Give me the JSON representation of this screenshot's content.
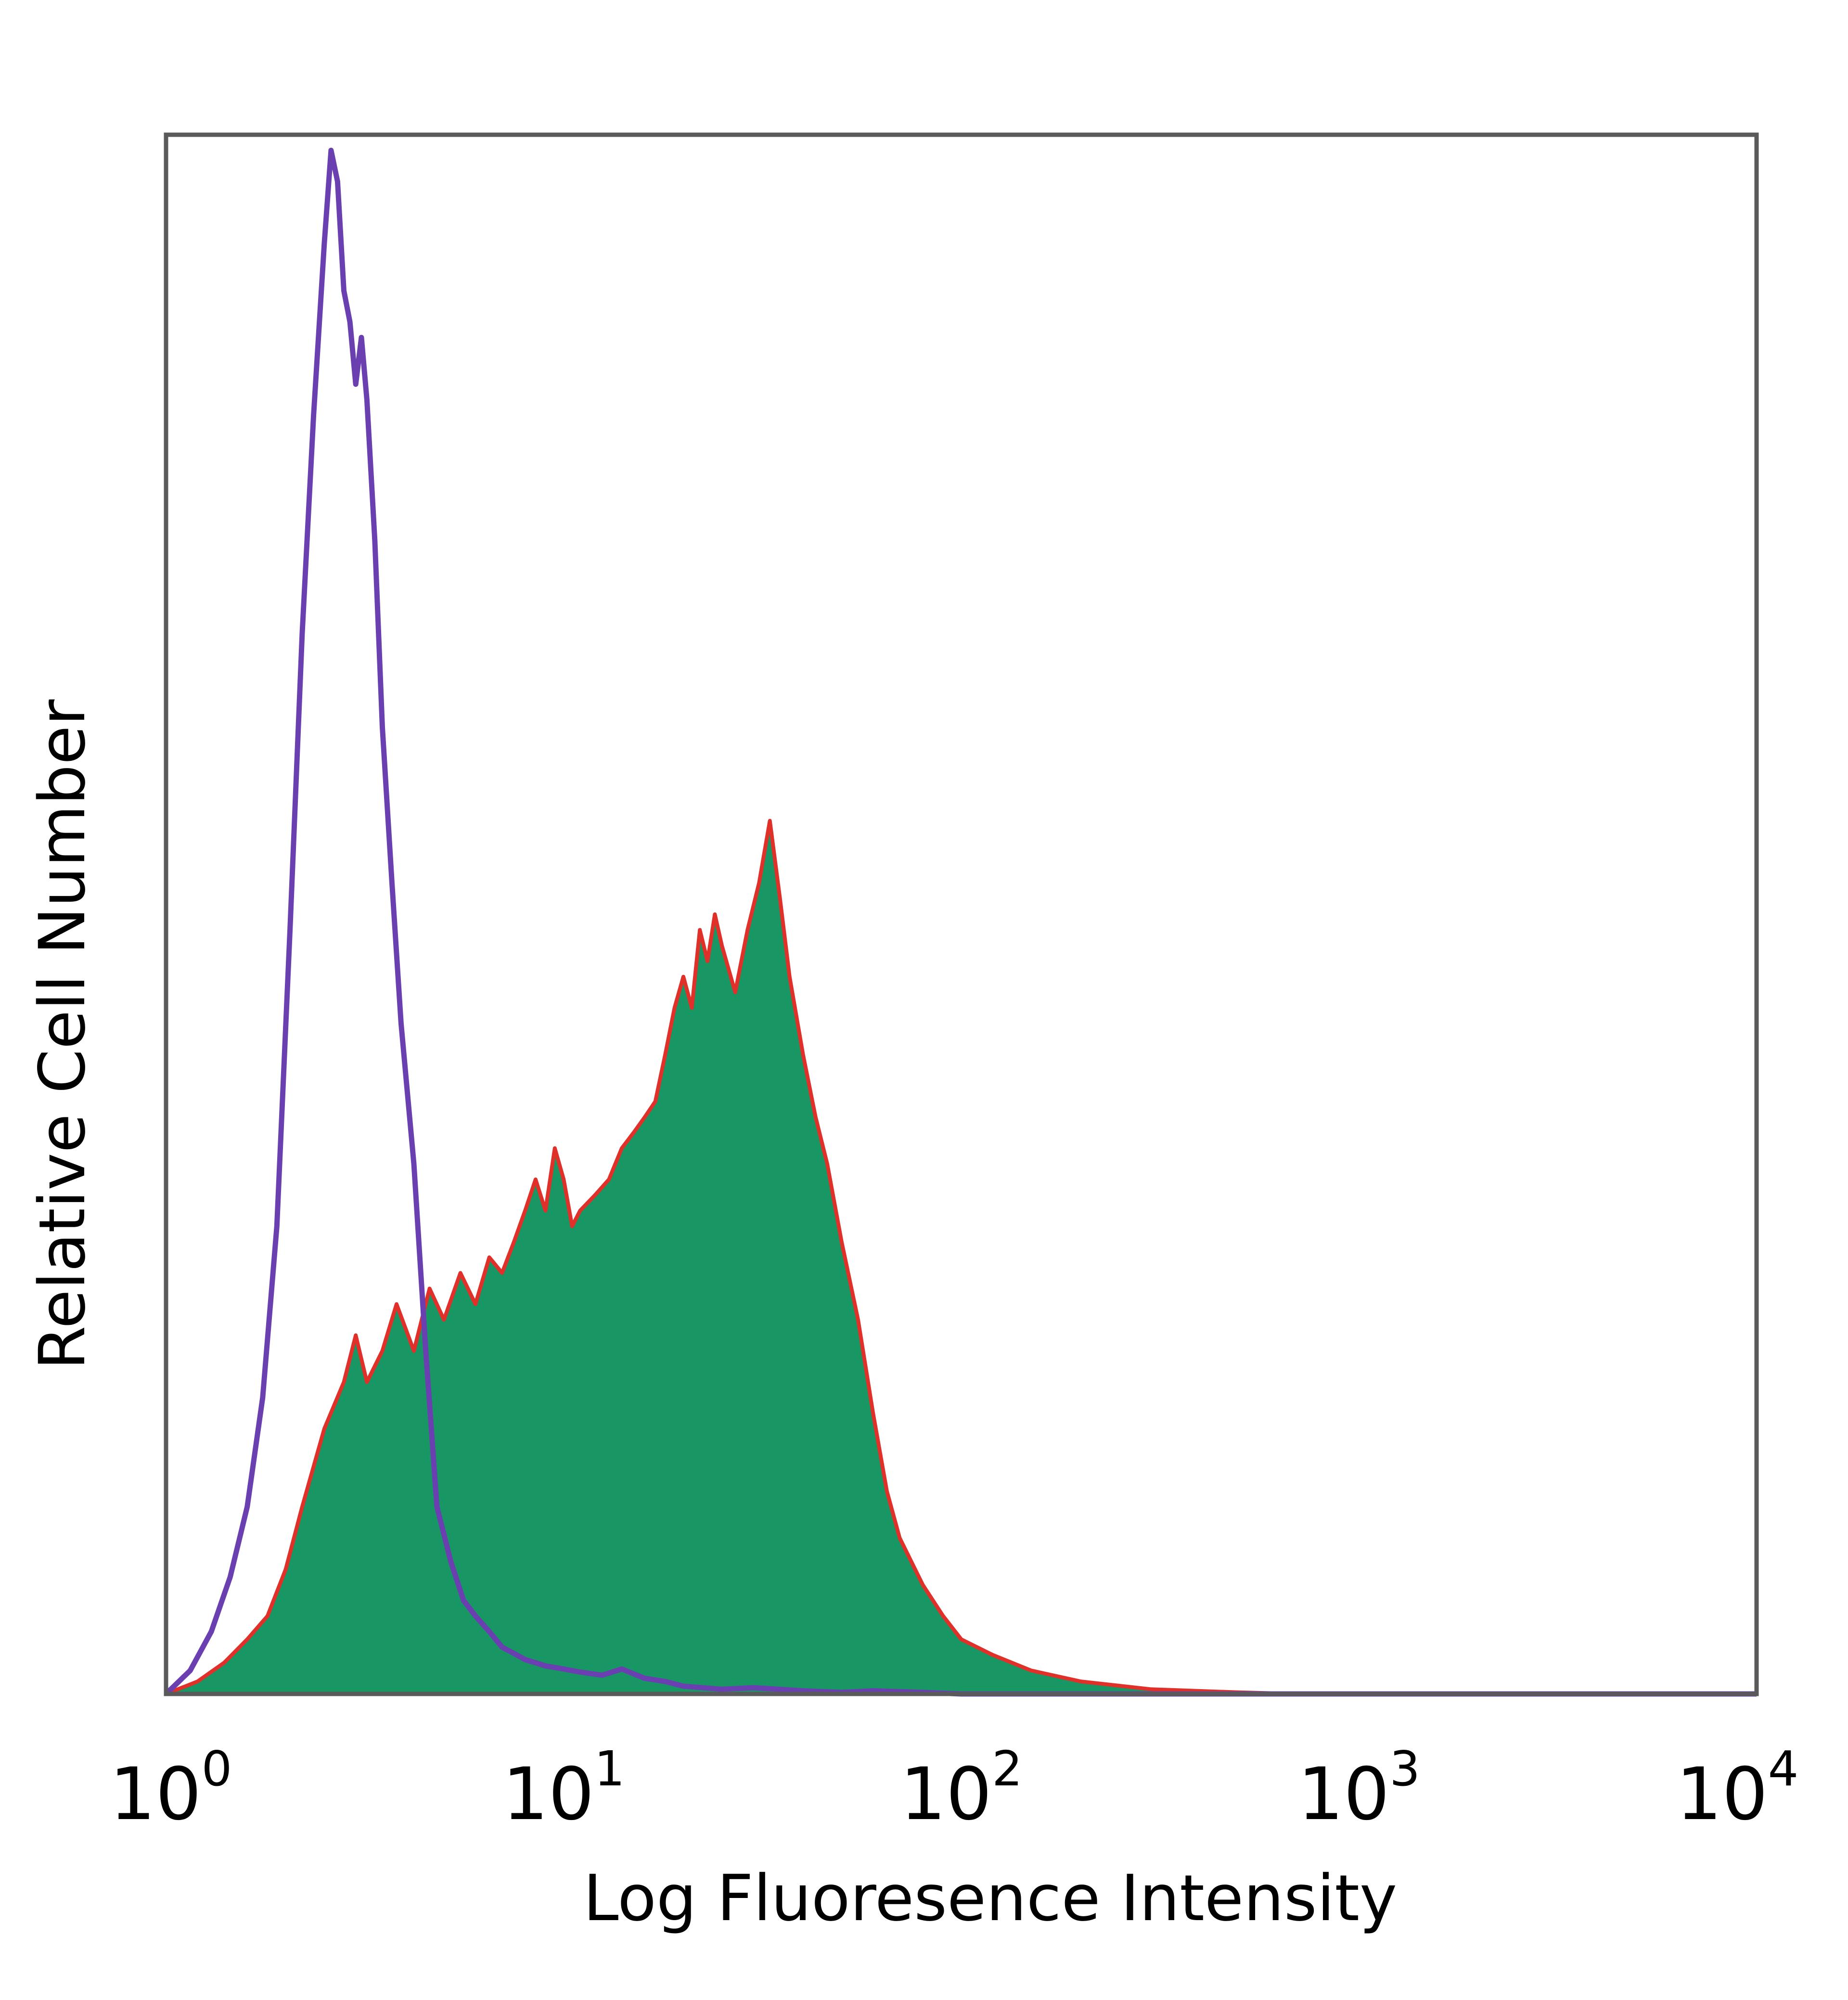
{
  "chart_data": {
    "type": "area",
    "xlabel": "Log Fluoresence Intensity",
    "ylabel": "Relative Cell Number",
    "xscale": "log",
    "xlim": [
      1,
      10000
    ],
    "ylim": [
      0,
      100
    ],
    "grid": false,
    "x_ticks": [
      {
        "base": "10",
        "exp": "0"
      },
      {
        "base": "10",
        "exp": "1"
      },
      {
        "base": "10",
        "exp": "2"
      },
      {
        "base": "10",
        "exp": "3"
      },
      {
        "base": "10",
        "exp": "4"
      }
    ],
    "series": [
      {
        "style": "outline",
        "color": "#6a3fb0",
        "x": [
          1.0,
          1.15,
          1.3,
          1.45,
          1.6,
          1.75,
          1.9,
          2.05,
          2.2,
          2.35,
          2.5,
          2.6,
          2.7,
          2.8,
          2.9,
          3.0,
          3.1,
          3.2,
          3.35,
          3.5,
          3.7,
          3.9,
          4.2,
          4.5,
          4.8,
          5.2,
          5.6,
          6.0,
          6.5,
          7.0,
          7.5,
          8.0,
          8.5,
          9.0,
          10.0,
          11.0,
          12.5,
          14.0,
          16.0,
          18.0,
          20.0,
          25.0,
          30.0,
          40.0,
          50.0,
          60.0,
          80.0,
          100.0,
          150.0,
          300.0,
          1000.0,
          10000.0
        ],
        "values": [
          0.0,
          1.5,
          4.0,
          7.5,
          12.0,
          19.0,
          30.0,
          49.0,
          68.0,
          82.0,
          93.0,
          99.0,
          97.0,
          90.0,
          88.0,
          84.0,
          87.0,
          83.0,
          74.0,
          62.0,
          52.0,
          43.0,
          34.0,
          22.0,
          12.0,
          8.5,
          6.0,
          5.0,
          4.0,
          3.0,
          2.6,
          2.2,
          2.0,
          1.8,
          1.6,
          1.4,
          1.2,
          1.6,
          1.0,
          0.8,
          0.5,
          0.3,
          0.4,
          0.2,
          0.1,
          0.2,
          0.1,
          0.0,
          0.0,
          0.0,
          0.0,
          0.0
        ]
      },
      {
        "style": "filled",
        "color": "#189765",
        "edge_color": "#e0302a",
        "x": [
          1.0,
          1.2,
          1.4,
          1.6,
          1.8,
          2.0,
          2.2,
          2.5,
          2.8,
          3.0,
          3.2,
          3.5,
          3.8,
          4.2,
          4.6,
          5.0,
          5.5,
          6.0,
          6.5,
          7.0,
          7.5,
          8.0,
          8.5,
          9.0,
          9.5,
          10.0,
          10.5,
          11.0,
          12.0,
          13.0,
          14.0,
          15.0,
          16.0,
          17.0,
          18.0,
          19.0,
          20.0,
          21.0,
          22.0,
          23.0,
          24.0,
          25.0,
          27.0,
          29.0,
          31.0,
          33.0,
          35.0,
          37.0,
          40.0,
          43.0,
          46.0,
          50.0,
          55.0,
          60.0,
          65.0,
          70.0,
          80.0,
          90.0,
          100.0,
          120.0,
          150.0,
          200.0,
          300.0,
          500.0,
          700.0,
          1000.0,
          10000.0
        ],
        "values": [
          0.0,
          0.8,
          2.0,
          3.5,
          5.0,
          8.0,
          12.0,
          17.0,
          20.0,
          23.0,
          20.0,
          22.0,
          25.0,
          22.0,
          26.0,
          24.0,
          27.0,
          25.0,
          28.0,
          27.0,
          29.0,
          31.0,
          33.0,
          31.0,
          35.0,
          33.0,
          30.0,
          31.0,
          32.0,
          33.0,
          35.0,
          36.0,
          37.0,
          38.0,
          41.0,
          44.0,
          46.0,
          44.0,
          49.0,
          47.0,
          50.0,
          48.0,
          45.0,
          49.0,
          52.0,
          56.0,
          51.0,
          46.0,
          41.0,
          37.0,
          34.0,
          29.0,
          24.0,
          18.0,
          13.0,
          10.0,
          7.0,
          5.0,
          3.5,
          2.5,
          1.5,
          0.8,
          0.3,
          0.1,
          0.0,
          0.0,
          0.0
        ]
      }
    ]
  }
}
